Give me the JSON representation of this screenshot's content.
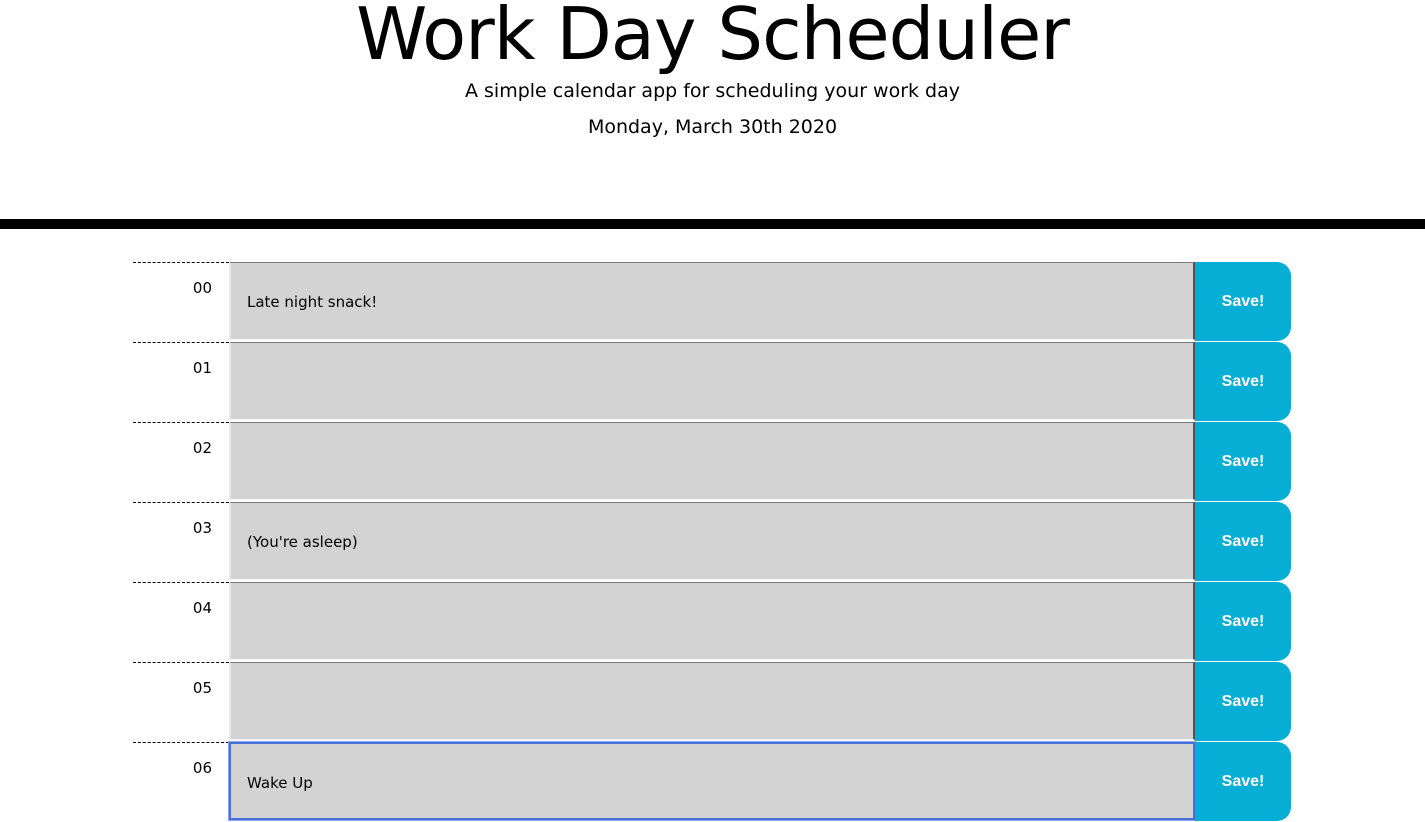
{
  "header": {
    "title": "Work Day Scheduler",
    "subtitle": "A simple calendar app for scheduling your work day",
    "current_day": "Monday, March 30th 2020"
  },
  "schedule": {
    "save_label": "Save!",
    "rows": [
      {
        "hour": "00",
        "text": "Late night snack!"
      },
      {
        "hour": "01",
        "text": ""
      },
      {
        "hour": "02",
        "text": ""
      },
      {
        "hour": "03",
        "text": "(You're asleep)"
      },
      {
        "hour": "04",
        "text": ""
      },
      {
        "hour": "05",
        "text": ""
      },
      {
        "hour": "06",
        "text": "Wake Up"
      }
    ]
  },
  "colors": {
    "save_button": "#06aed5",
    "past_block": "#d3d3d3",
    "divider": "#000000"
  }
}
